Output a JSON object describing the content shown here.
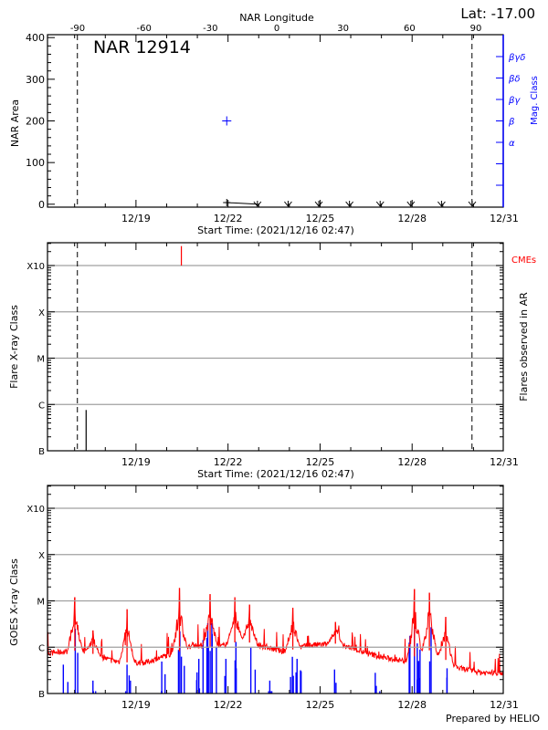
{
  "header": {
    "top_axis_title": "NAR Longitude",
    "latitude": "Lat: -17.00"
  },
  "footer": {
    "credit": "Prepared by HELIO"
  },
  "colors": {
    "axis": "#000000",
    "grid": "#a0a0a0",
    "mag_class": "#0000ff",
    "cme": "#ff0000",
    "goes_long": "#ff0000",
    "goes_short": "#0000ff"
  },
  "chart_data": [
    {
      "type": "scatter",
      "title": "NAR 12914",
      "ylabel": "NAR Area",
      "y2label": "Mag. Class",
      "xlabel": "Start Time: (2021/12/16 02:47)",
      "xlim": [
        "12/16 02:47",
        "12/31 00:00"
      ],
      "ylim": [
        -7,
        407
      ],
      "yticks": [
        "0",
        "100",
        "200",
        "300",
        "400"
      ],
      "xticks": [
        "12/19",
        "12/22",
        "12/25",
        "12/28",
        "12/31"
      ],
      "top_xticks": [
        "-90",
        "-60",
        "-30",
        "0",
        "30",
        "60",
        "90"
      ],
      "mag_class_ticks": [
        "α",
        "β",
        "βγ",
        "βδ",
        "βγδ"
      ],
      "area_points": [
        {
          "x": "12/21 23:00",
          "y": 4
        },
        {
          "x": "12/22 23:00",
          "y": 0
        }
      ],
      "no_data_markers": [
        "12/22 23:00",
        "12/23 23:00",
        "12/24 23:00",
        "12/25 23:00",
        "12/26 23:00",
        "12/27 23:00",
        "12/28 23:00",
        "12/29 23:00"
      ],
      "mag_class_points": [
        {
          "x": "12/21 23:00",
          "class": "β"
        }
      ],
      "limb_lines": [
        "12/17 02:10",
        "12/29 22:50"
      ]
    },
    {
      "type": "bar",
      "ylabel": "Flare X-ray Class",
      "y2label": "Flares observed in AR",
      "cme_label": "CMEs",
      "xlabel": "Start Time: (2021/12/16 02:47)",
      "yticks": [
        "B",
        "C",
        "M",
        "X",
        "X10"
      ],
      "xticks": [
        "12/19",
        "12/22",
        "12/25",
        "12/28",
        "12/31"
      ],
      "grid": true,
      "flares": [
        {
          "x": "12/17 09:00",
          "class": "B7.6"
        }
      ],
      "cmes": [
        "12/20 11:30"
      ],
      "limb_lines": [
        "12/17 02:10",
        "12/29 22:50"
      ]
    },
    {
      "type": "line",
      "ylabel": "GOES X-ray Class",
      "yticks": [
        "B",
        "C",
        "M",
        "X",
        "X10"
      ],
      "xticks": [
        "12/19",
        "12/22",
        "12/25",
        "12/28",
        "12/31"
      ],
      "grid": true,
      "long_channel_baseline": [
        {
          "x": "12/16 03:40",
          "class": "B7.4"
        },
        {
          "x": "12/17 05:50",
          "class": "B8.7"
        },
        {
          "x": "12/18 05:20",
          "class": "B5.1"
        },
        {
          "x": "12/18 17:00",
          "class": "B4.7"
        },
        {
          "x": "12/19 07:10",
          "class": "B4.6"
        },
        {
          "x": "12/19 21:20",
          "class": "B6.3"
        },
        {
          "x": "12/20 09:10",
          "class": "B7.9"
        },
        {
          "x": "12/20 20:50",
          "class": "C1.1"
        },
        {
          "x": "12/21 15:40",
          "class": "C1.0"
        },
        {
          "x": "12/22 10:50",
          "class": "C1.4"
        },
        {
          "x": "12/23 05:30",
          "class": "C1.0"
        },
        {
          "x": "12/23 19:40",
          "class": "B7.9"
        },
        {
          "x": "12/24 14:40",
          "class": "C1.1"
        },
        {
          "x": "12/25 14:10",
          "class": "C1.2"
        },
        {
          "x": "12/26 09:10",
          "class": "B7.9"
        },
        {
          "x": "12/27 01:40",
          "class": "B5.9"
        },
        {
          "x": "12/27 18:10",
          "class": "B5.1"
        },
        {
          "x": "12/28 13:00",
          "class": "B8.7"
        },
        {
          "x": "12/29 01:00",
          "class": "B5.6"
        },
        {
          "x": "12/29 12:40",
          "class": "B3.5"
        },
        {
          "x": "12/30 07:30",
          "class": "B2.8"
        },
        {
          "x": "12/30 21:40",
          "class": "B2.8"
        }
      ],
      "long_channel_peaks": [
        {
          "x": "12/17 00:10",
          "class": "M1.2"
        },
        {
          "x": "12/17 14:20",
          "class": "C2.3"
        },
        {
          "x": "12/18 17:00",
          "class": "C6.6"
        },
        {
          "x": "12/20 10:00",
          "class": "M1.9"
        },
        {
          "x": "12/21 10:00",
          "class": "M1.4"
        },
        {
          "x": "12/22 05:20",
          "class": "M1.2"
        },
        {
          "x": "12/22 16:50",
          "class": "C8.3"
        },
        {
          "x": "12/24 02:40",
          "class": "C7.1"
        },
        {
          "x": "12/25 12:00",
          "class": "C3.5"
        },
        {
          "x": "12/28 01:50",
          "class": "M1.8"
        },
        {
          "x": "12/28 13:30",
          "class": "M1.5"
        },
        {
          "x": "12/29 02:20",
          "class": "C4.5"
        }
      ],
      "short_channel_peaks": [
        {
          "x": "12/16 15:10",
          "class": "B4.2"
        },
        {
          "x": "12/17 00:30",
          "class": "C2.5"
        },
        {
          "x": "12/17 14:20",
          "class": "B1.9"
        },
        {
          "x": "12/18 17:00",
          "class": "B4.2"
        },
        {
          "x": "12/19 20:10",
          "class": "B4.9"
        },
        {
          "x": "12/20 10:20",
          "class": "C2.2"
        },
        {
          "x": "12/21 01:10",
          "class": "B5.6"
        },
        {
          "x": "12/21 08:10",
          "class": "C3.3"
        },
        {
          "x": "12/21 11:20",
          "class": "C3.3"
        },
        {
          "x": "12/21 22:20",
          "class": "B5.6"
        },
        {
          "x": "12/22 06:10",
          "class": "C1.3"
        },
        {
          "x": "12/22 17:50",
          "class": "B9.8"
        },
        {
          "x": "12/23 08:40",
          "class": "B1.9"
        },
        {
          "x": "12/24 02:20",
          "class": "B6.2"
        },
        {
          "x": "12/24 06:00",
          "class": "B5.6"
        },
        {
          "x": "12/25 11:20",
          "class": "B3.3"
        },
        {
          "x": "12/26 19:10",
          "class": "B2.8"
        },
        {
          "x": "12/28 01:50",
          "class": "C2.8"
        },
        {
          "x": "12/28 06:10",
          "class": "B8.9"
        },
        {
          "x": "12/28 14:50",
          "class": "C2.7"
        },
        {
          "x": "12/29 03:20",
          "class": "B3.5"
        }
      ]
    }
  ]
}
